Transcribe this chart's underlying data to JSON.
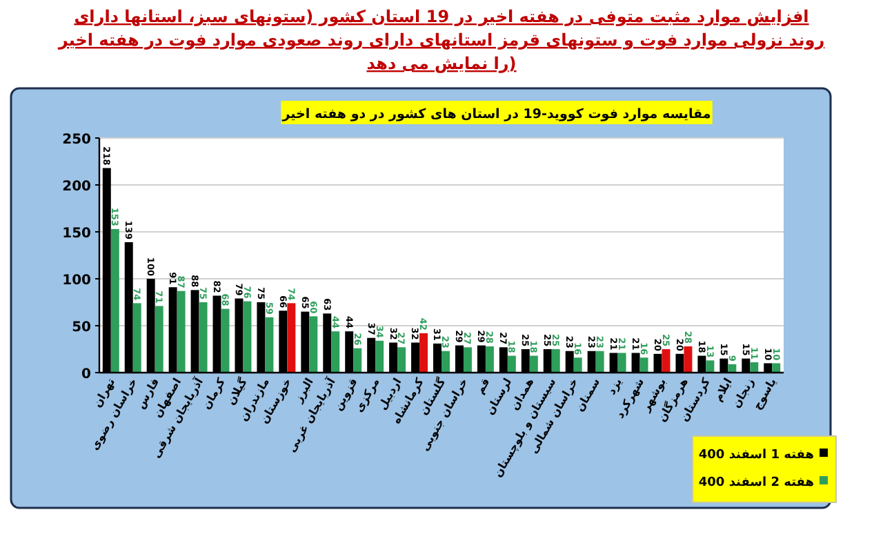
{
  "chart_data": {
    "type": "bar",
    "title": "افزایش موارد مثبت متوفی در هفته اخیر در 19 استان کشور (ستونهای سبز، استانها دارای روند نزولی موارد فوت و ستونهای قرمز استانهای دارای روند صعودی موارد فوت در هفته اخیر را نمایش می دهد)",
    "subtitle": "مقایسه موارد فوت کووید-19 در استان های کشور در دو هفته اخیر",
    "categories": [
      "تهران",
      "خراسان رضوی",
      "فارس",
      "اصفهان",
      "آذربایجان شرقی",
      "کرمان",
      "گیلان",
      "مازندران",
      "خوزستان",
      "البرز",
      "آذربایجان غربی",
      "قزوین",
      "مرکزی",
      "اردبیل",
      "کرمانشاه",
      "گلستان",
      "خراسان جنوبی",
      "قم",
      "لرستان",
      "همدان",
      "سیستان و بلوچستان",
      "خراسان شمالی",
      "سمنان",
      "یزد",
      "شهرکرد",
      "بوشهر",
      "هرمزگان",
      "کردستان",
      "ایلام",
      "زنجان",
      "یاسوج"
    ],
    "series": [
      {
        "name": "هفته 1 اسفند 400",
        "color": "#000000",
        "values": [
          218,
          139,
          100,
          91,
          88,
          82,
          79,
          75,
          66,
          65,
          63,
          44,
          37,
          32,
          32,
          31,
          29,
          29,
          27,
          25,
          25,
          23,
          23,
          21,
          21,
          20,
          20,
          18,
          15,
          15,
          10
        ]
      },
      {
        "name": "هفته 2 اسفند 400",
        "color": "#2e9e5b",
        "colors": [
          "#2e9e5b",
          "#2e9e5b",
          "#2e9e5b",
          "#2e9e5b",
          "#2e9e5b",
          "#2e9e5b",
          "#2e9e5b",
          "#2e9e5b",
          "#e01010",
          "#2e9e5b",
          "#2e9e5b",
          "#2e9e5b",
          "#2e9e5b",
          "#2e9e5b",
          "#e01010",
          "#2e9e5b",
          "#2e9e5b",
          "#2e9e5b",
          "#2e9e5b",
          "#2e9e5b",
          "#2e9e5b",
          "#2e9e5b",
          "#2e9e5b",
          "#2e9e5b",
          "#2e9e5b",
          "#e01010",
          "#e01010",
          "#2e9e5b",
          "#2e9e5b",
          "#2e9e5b",
          "#2e9e5b"
        ],
        "values": [
          153,
          74,
          71,
          87,
          75,
          68,
          76,
          59,
          74,
          60,
          44,
          26,
          34,
          27,
          42,
          23,
          27,
          28,
          18,
          18,
          25,
          16,
          23,
          21,
          16,
          25,
          28,
          13,
          9,
          11,
          10
        ]
      }
    ],
    "ylim": [
      0,
      250
    ],
    "yticks": [
      0,
      50,
      100,
      150,
      200,
      250
    ],
    "grid": "y",
    "legend": "bottom right",
    "data_labels": true
  }
}
